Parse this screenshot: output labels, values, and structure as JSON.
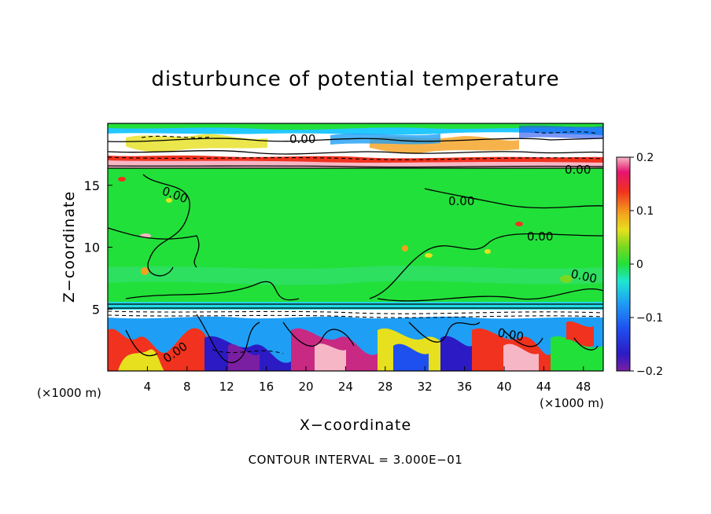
{
  "chart_data": {
    "type": "heatmap",
    "title": "disturbunce of potential temperature",
    "xlabel": "X−coordinate",
    "ylabel": "Z−coordinate",
    "x_unit": "(×1000 m)",
    "z_unit": "(×1000 m)",
    "xlim": [
      0,
      50
    ],
    "ylim": [
      0,
      20
    ],
    "x_ticks": [
      4,
      8,
      12,
      16,
      20,
      24,
      28,
      32,
      36,
      40,
      44,
      48
    ],
    "y_ticks": [
      5,
      10,
      15
    ],
    "colorbar": {
      "range": [
        -0.2,
        0.2
      ],
      "tick_values": [
        -0.2,
        -0.1,
        0,
        0.1,
        0.2
      ],
      "tick_labels": [
        "−0.2",
        "−0.1",
        "0",
        "0.1",
        "0.2"
      ]
    },
    "contour_labels": [
      "0.00",
      "0.00",
      "0.00",
      "0.00",
      "0.00",
      "0.00",
      "0.00",
      "0.00"
    ],
    "contour_interval": "CONTOUR INTERVAL = 3.000E−01",
    "grid": false,
    "colorbar_position": "right"
  }
}
